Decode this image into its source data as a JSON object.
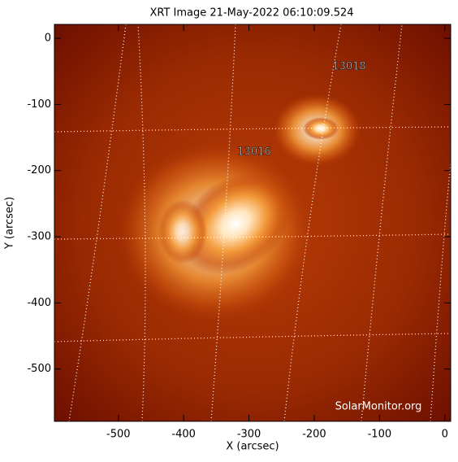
{
  "chart_data": {
    "type": "image",
    "title": "XRT Image 21-May-2022 06:10:09.524",
    "x_label": "X (arcsec)",
    "y_label": "Y (arcsec)",
    "xlim": [
      -598,
      9
    ],
    "ylim": [
      -579,
      21
    ],
    "xticks": [
      -500,
      -400,
      -300,
      -200,
      -100,
      0
    ],
    "yticks": [
      0,
      -100,
      -200,
      -300,
      -400,
      -500
    ],
    "annotations": [
      "13018",
      "13016"
    ],
    "watermark": "SolarMonitor.org"
  }
}
